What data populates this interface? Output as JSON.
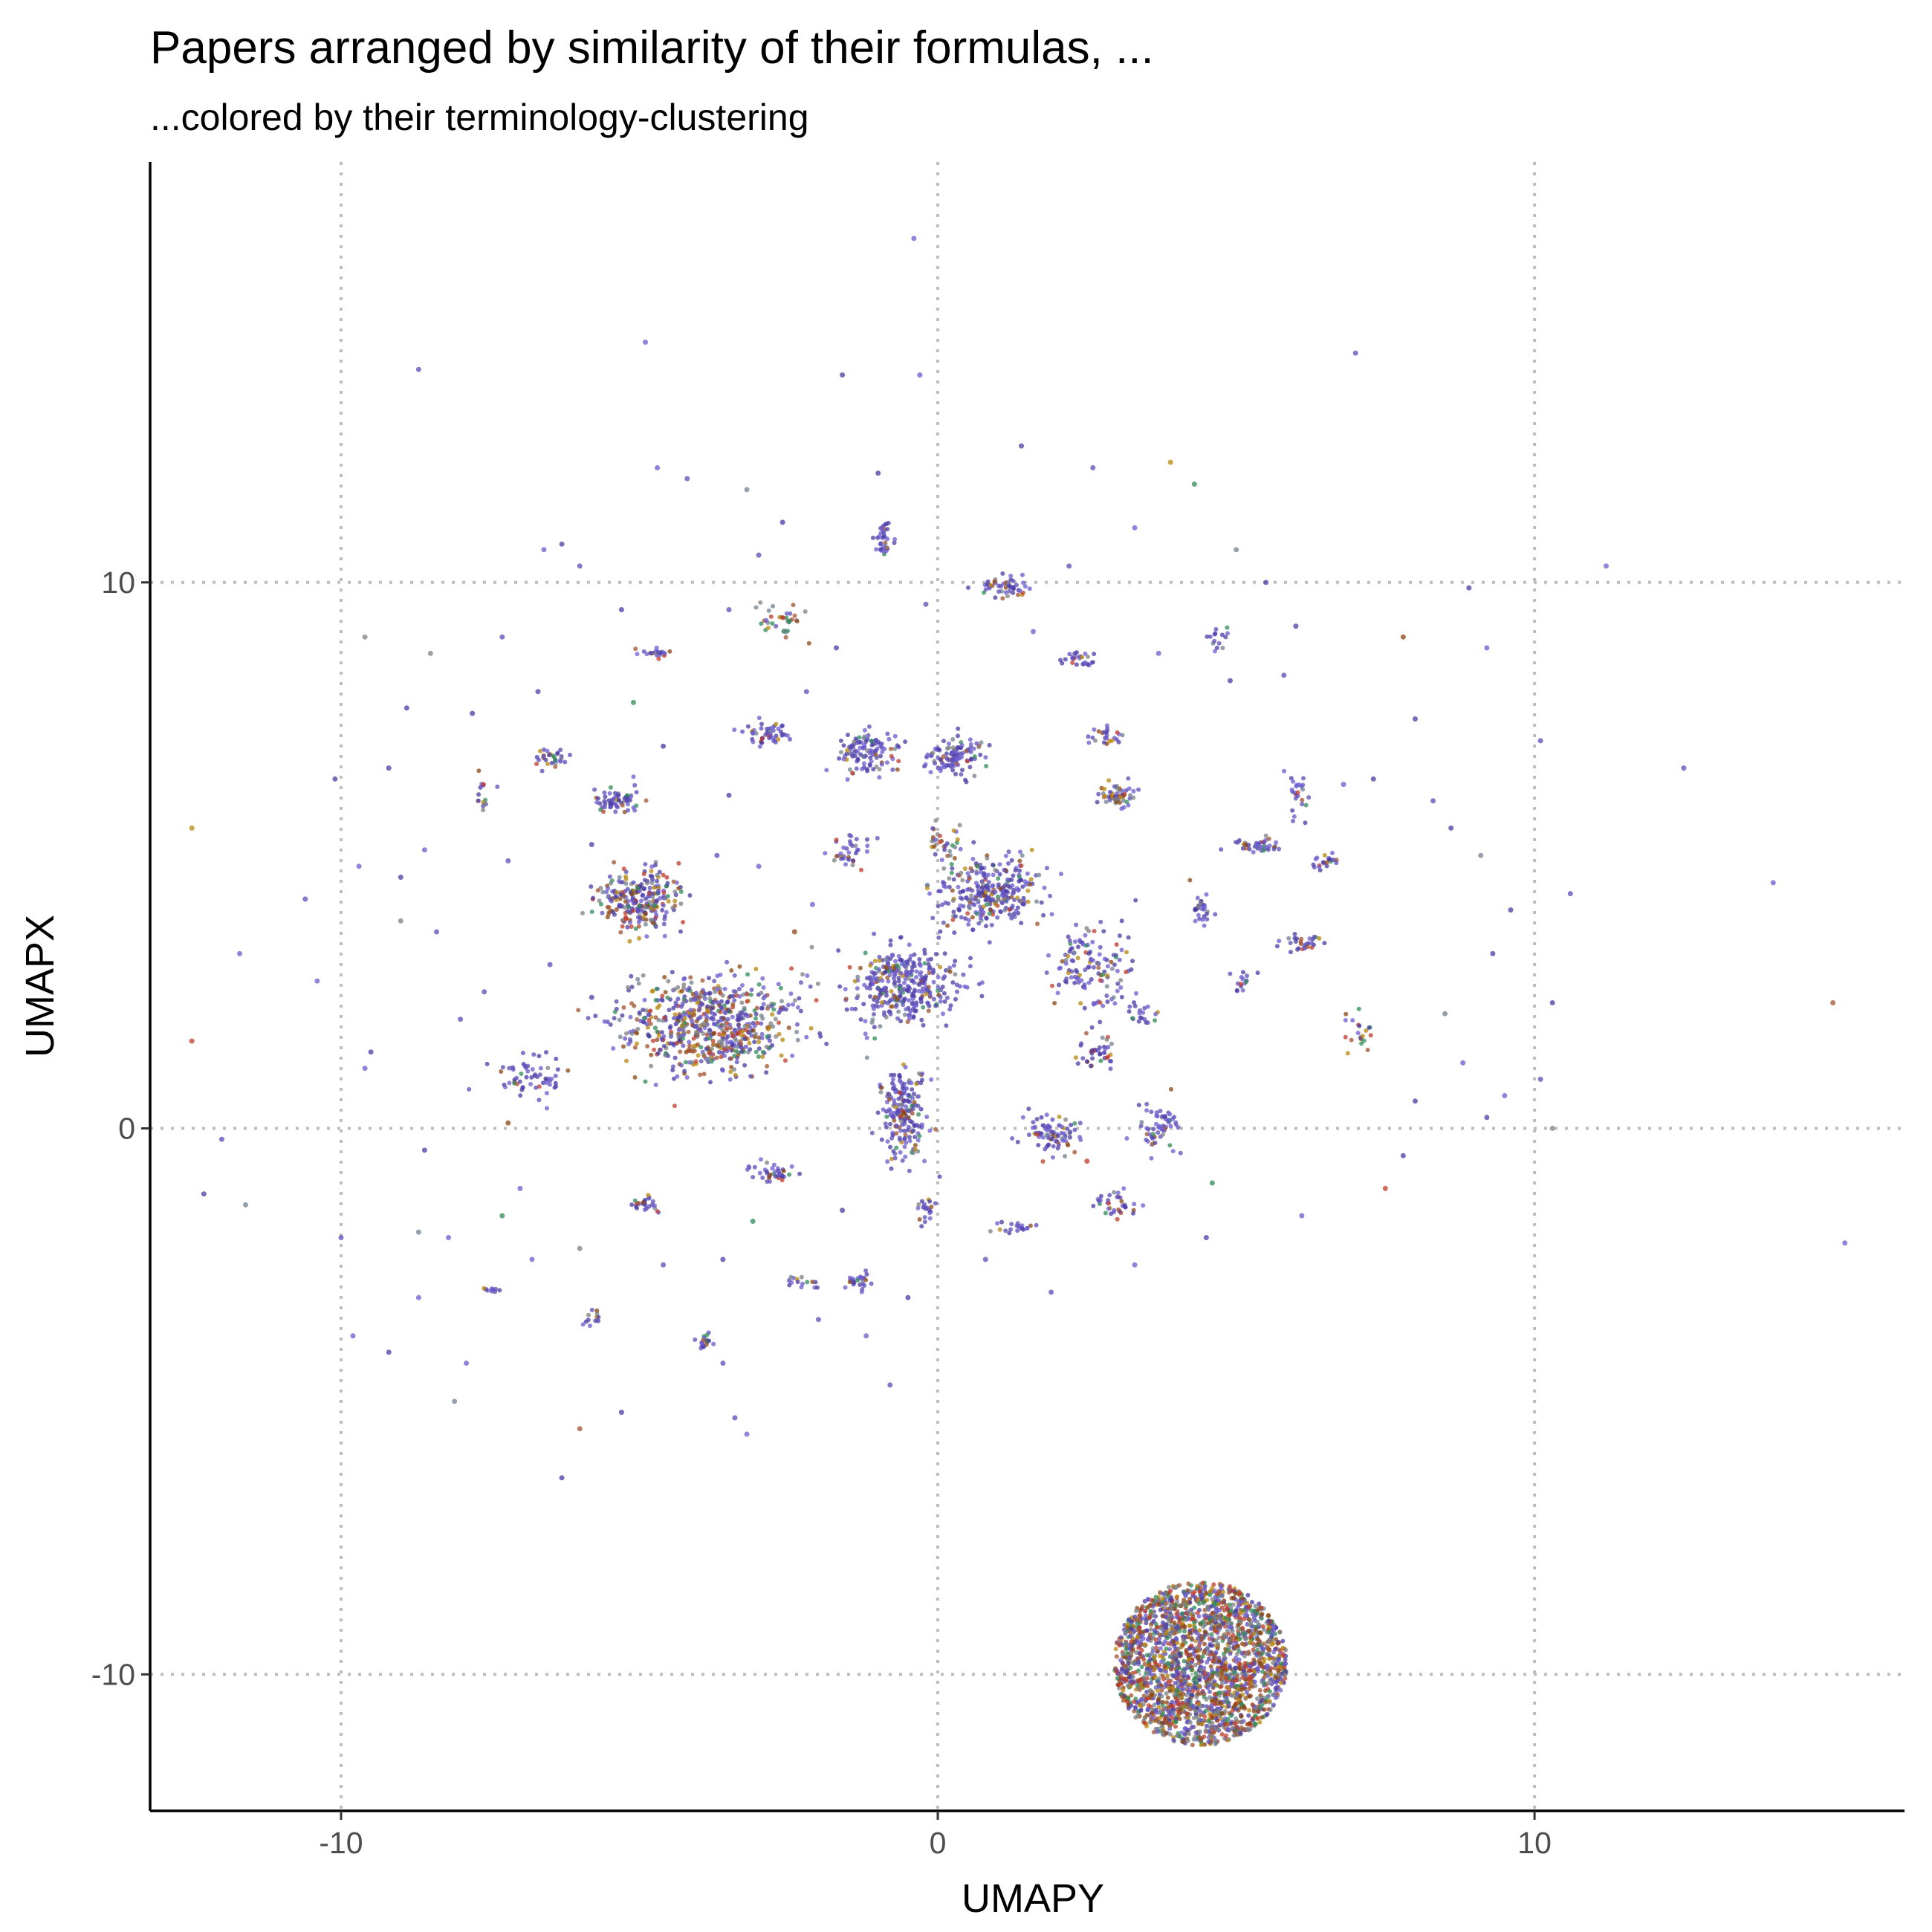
{
  "chart_data": {
    "type": "scatter",
    "title": "Papers arranged by similarity of their formulas, ...",
    "subtitle": "...colored by their terminology-clustering",
    "xlabel": "UMAPY",
    "ylabel": "UMAPX",
    "xlim": [
      -13.2,
      16.2
    ],
    "ylim": [
      -12.5,
      17.7
    ],
    "x_ticks": [
      {
        "value": -10,
        "label": "-10"
      },
      {
        "value": 0,
        "label": "0"
      },
      {
        "value": 10,
        "label": "10"
      }
    ],
    "y_ticks": [
      {
        "value": -10,
        "label": "-10"
      },
      {
        "value": 0,
        "label": "0"
      },
      {
        "value": 10,
        "label": "10"
      }
    ],
    "grid": true,
    "legend": "none",
    "palette": [
      "#5b4bb8",
      "#4a3aa6",
      "#6a5acd",
      "#b8860b",
      "#8b4513",
      "#7f7f7f",
      "#2e8b57",
      "#a0522d",
      "#c0392b",
      "#708090"
    ],
    "clusters": [
      {
        "x": 4.4,
        "y": -9.8,
        "rx": 1.45,
        "ry": 1.5,
        "n": 2200,
        "shape": "disk",
        "colors": "mixed"
      },
      {
        "x": -3.8,
        "y": 1.9,
        "rx": 1.4,
        "ry": 0.9,
        "n": 650,
        "colors": "warm"
      },
      {
        "x": -5.0,
        "y": 4.2,
        "rx": 0.65,
        "ry": 0.55,
        "n": 260,
        "colors": "warm"
      },
      {
        "x": -0.5,
        "y": 2.6,
        "rx": 0.9,
        "ry": 0.7,
        "n": 340,
        "colors": "purple"
      },
      {
        "x": 0.9,
        "y": 4.3,
        "rx": 0.9,
        "ry": 0.6,
        "n": 300,
        "colors": "purple"
      },
      {
        "x": -0.6,
        "y": 0.3,
        "rx": 0.4,
        "ry": 0.9,
        "n": 190,
        "colors": "purple"
      },
      {
        "x": 0.3,
        "y": 6.8,
        "rx": 0.45,
        "ry": 0.35,
        "n": 110,
        "colors": "purple"
      },
      {
        "x": -1.2,
        "y": 6.9,
        "rx": 0.5,
        "ry": 0.4,
        "n": 110,
        "colors": "purple"
      },
      {
        "x": 2.6,
        "y": 3.0,
        "rx": 0.7,
        "ry": 0.8,
        "n": 130,
        "colors": "purple"
      },
      {
        "x": 3.0,
        "y": 6.1,
        "rx": 0.3,
        "ry": 0.2,
        "n": 60,
        "colors": "warm"
      },
      {
        "x": 1.9,
        "y": -0.1,
        "rx": 0.5,
        "ry": 0.4,
        "n": 80,
        "colors": "purple"
      },
      {
        "x": 3.7,
        "y": 0.0,
        "rx": 0.4,
        "ry": 0.5,
        "n": 60,
        "colors": "purple"
      },
      {
        "x": -5.4,
        "y": 6.0,
        "rx": 0.4,
        "ry": 0.25,
        "n": 60,
        "colors": "purple"
      },
      {
        "x": -6.9,
        "y": 0.9,
        "rx": 0.6,
        "ry": 0.4,
        "n": 60,
        "colors": "purple"
      },
      {
        "x": -2.9,
        "y": 7.2,
        "rx": 0.4,
        "ry": 0.2,
        "n": 50,
        "colors": "purple"
      },
      {
        "x": 1.1,
        "y": 9.9,
        "rx": 0.45,
        "ry": 0.2,
        "n": 50,
        "colors": "purple"
      },
      {
        "x": -0.9,
        "y": 10.8,
        "rx": 0.15,
        "ry": 0.35,
        "n": 35,
        "colors": "purple"
      },
      {
        "x": 5.3,
        "y": 5.2,
        "rx": 0.4,
        "ry": 0.15,
        "n": 40,
        "colors": "purple"
      },
      {
        "x": 2.7,
        "y": 1.4,
        "rx": 0.4,
        "ry": 0.3,
        "n": 40,
        "colors": "purple"
      },
      {
        "x": -2.8,
        "y": -0.8,
        "rx": 0.35,
        "ry": 0.2,
        "n": 40,
        "colors": "purple"
      },
      {
        "x": 3.0,
        "y": -1.4,
        "rx": 0.35,
        "ry": 0.25,
        "n": 35,
        "colors": "purple"
      },
      {
        "x": -6.5,
        "y": 6.8,
        "rx": 0.3,
        "ry": 0.2,
        "n": 30,
        "colors": "purple"
      },
      {
        "x": -1.5,
        "y": 5.0,
        "rx": 0.3,
        "ry": 0.3,
        "n": 35,
        "colors": "purple"
      },
      {
        "x": 4.4,
        "y": 4.0,
        "rx": 0.2,
        "ry": 0.3,
        "n": 30,
        "colors": "purple"
      },
      {
        "x": 6.1,
        "y": 3.4,
        "rx": 0.3,
        "ry": 0.15,
        "n": 30,
        "colors": "purple"
      },
      {
        "x": -4.9,
        "y": -1.4,
        "rx": 0.3,
        "ry": 0.15,
        "n": 25,
        "colors": "purple"
      },
      {
        "x": -3.9,
        "y": -3.9,
        "rx": 0.15,
        "ry": 0.15,
        "n": 20,
        "colors": "purple"
      },
      {
        "x": 1.3,
        "y": -1.8,
        "rx": 0.35,
        "ry": 0.1,
        "n": 20,
        "colors": "purple"
      },
      {
        "x": 6.0,
        "y": 6.1,
        "rx": 0.25,
        "ry": 0.4,
        "n": 25,
        "colors": "purple"
      },
      {
        "x": 6.5,
        "y": 4.9,
        "rx": 0.2,
        "ry": 0.15,
        "n": 20,
        "colors": "purple"
      },
      {
        "x": 2.8,
        "y": 7.2,
        "rx": 0.3,
        "ry": 0.2,
        "n": 25,
        "colors": "purple"
      },
      {
        "x": 2.4,
        "y": 8.6,
        "rx": 0.3,
        "ry": 0.15,
        "n": 25,
        "colors": "purple"
      },
      {
        "x": -4.8,
        "y": 8.7,
        "rx": 0.3,
        "ry": 0.1,
        "n": 20,
        "colors": "purple"
      },
      {
        "x": -2.6,
        "y": 9.3,
        "rx": 0.4,
        "ry": 0.3,
        "n": 35,
        "colors": "mixed"
      },
      {
        "x": -1.3,
        "y": -2.8,
        "rx": 0.3,
        "ry": 0.15,
        "n": 25,
        "colors": "purple"
      },
      {
        "x": -0.2,
        "y": -1.5,
        "rx": 0.15,
        "ry": 0.3,
        "n": 20,
        "colors": "purple"
      },
      {
        "x": 5.1,
        "y": 2.7,
        "rx": 0.2,
        "ry": 0.2,
        "n": 15,
        "colors": "purple"
      },
      {
        "x": 7.0,
        "y": 1.8,
        "rx": 0.3,
        "ry": 0.4,
        "n": 20,
        "colors": "mixed"
      },
      {
        "x": -7.6,
        "y": 6.1,
        "rx": 0.15,
        "ry": 0.3,
        "n": 15,
        "colors": "purple"
      },
      {
        "x": -5.8,
        "y": -3.5,
        "rx": 0.15,
        "ry": 0.3,
        "n": 12,
        "colors": "purple"
      },
      {
        "x": -7.5,
        "y": -3.0,
        "rx": 0.1,
        "ry": 0.1,
        "n": 10,
        "colors": "purple"
      },
      {
        "x": -2.3,
        "y": -2.8,
        "rx": 0.25,
        "ry": 0.15,
        "n": 15,
        "colors": "purple"
      },
      {
        "x": 4.7,
        "y": 9.0,
        "rx": 0.2,
        "ry": 0.3,
        "n": 15,
        "colors": "purple"
      },
      {
        "x": 3.4,
        "y": 2.1,
        "rx": 0.25,
        "ry": 0.25,
        "n": 20,
        "colors": "purple"
      },
      {
        "x": 0.1,
        "y": 5.3,
        "rx": 0.3,
        "ry": 0.3,
        "n": 30,
        "colors": "mixed"
      }
    ],
    "outliers": [
      [
        -0.4,
        16.3
      ],
      [
        -8.7,
        13.9
      ],
      [
        -4.9,
        14.4
      ],
      [
        -1.6,
        13.8
      ],
      [
        -0.3,
        13.8
      ],
      [
        7.0,
        14.2
      ],
      [
        1.4,
        12.5
      ],
      [
        2.6,
        12.1
      ],
      [
        3.9,
        12.2
      ],
      [
        -4.7,
        12.1
      ],
      [
        -4.2,
        11.9
      ],
      [
        -3.2,
        11.7
      ],
      [
        -2.6,
        11.1
      ],
      [
        -1.0,
        12.0
      ],
      [
        -3.0,
        10.5
      ],
      [
        -6.6,
        10.6
      ],
      [
        -6.3,
        10.7
      ],
      [
        -6.0,
        10.3
      ],
      [
        4.3,
        11.8
      ],
      [
        -12.5,
        5.5
      ],
      [
        -11.7,
        3.2
      ],
      [
        -10.4,
        2.7
      ],
      [
        -12.5,
        1.6
      ],
      [
        -12.3,
        -1.2
      ],
      [
        -11.6,
        -1.4
      ],
      [
        -10.0,
        -2.0
      ],
      [
        -9.8,
        -3.8
      ],
      [
        -8.2,
        -2.0
      ],
      [
        -9.2,
        -4.1
      ],
      [
        -8.1,
        -5.0
      ],
      [
        -6.8,
        -2.4
      ],
      [
        -7.9,
        -4.3
      ],
      [
        -6.0,
        -5.5
      ],
      [
        -6.3,
        -6.4
      ],
      [
        -5.3,
        -5.2
      ],
      [
        -3.2,
        -5.6
      ],
      [
        -3.4,
        -5.3
      ],
      [
        -3.6,
        -4.3
      ],
      [
        -8.7,
        -1.9
      ],
      [
        -9.7,
        4.8
      ],
      [
        -9.0,
        3.8
      ],
      [
        -9.5,
        1.4
      ],
      [
        -12.0,
        -0.2
      ],
      [
        -10.1,
        6.4
      ],
      [
        -9.2,
        6.6
      ],
      [
        -8.9,
        7.7
      ],
      [
        -9.6,
        9.0
      ],
      [
        -10.6,
        4.2
      ],
      [
        -8.6,
        5.1
      ],
      [
        -7.2,
        4.9
      ],
      [
        -8.4,
        3.6
      ],
      [
        -9.0,
        4.6
      ],
      [
        8.9,
        9.9
      ],
      [
        9.1,
        5.0
      ],
      [
        9.6,
        4.0
      ],
      [
        10.6,
        4.3
      ],
      [
        10.1,
        7.1
      ],
      [
        14.0,
        4.5
      ],
      [
        15.0,
        2.3
      ],
      [
        15.2,
        -2.1
      ],
      [
        9.3,
        3.2
      ],
      [
        10.3,
        2.3
      ],
      [
        10.3,
        0.0
      ],
      [
        10.1,
        0.9
      ],
      [
        9.5,
        0.6
      ],
      [
        8.0,
        0.5
      ],
      [
        7.8,
        -0.5
      ],
      [
        7.5,
        -1.1
      ],
      [
        8.5,
        2.1
      ],
      [
        8.8,
        1.2
      ],
      [
        9.2,
        0.2
      ],
      [
        4.5,
        -2.0
      ],
      [
        8.0,
        7.5
      ],
      [
        8.3,
        6.0
      ],
      [
        8.6,
        5.5
      ],
      [
        7.3,
        6.4
      ],
      [
        6.8,
        6.3
      ],
      [
        7.8,
        9.0
      ],
      [
        -8.7,
        -3.1
      ],
      [
        -7.0,
        -1.1
      ],
      [
        -7.3,
        -1.6
      ],
      [
        -6.0,
        -2.2
      ],
      [
        -4.6,
        -2.5
      ],
      [
        -3.1,
        -1.7
      ],
      [
        -1.2,
        -3.8
      ],
      [
        -0.8,
        -4.7
      ],
      [
        -2.0,
        -3.5
      ],
      [
        -4.6,
        7.0
      ],
      [
        -5.8,
        5.2
      ],
      [
        -5.1,
        7.8
      ],
      [
        -3.5,
        6.1
      ],
      [
        -2.4,
        3.6
      ],
      [
        -2.1,
        4.1
      ],
      [
        -3.0,
        4.8
      ],
      [
        -3.7,
        5.0
      ],
      [
        2.2,
        10.3
      ],
      [
        3.3,
        11.0
      ],
      [
        5.0,
        10.6
      ],
      [
        5.5,
        10.0
      ],
      [
        6.0,
        9.2
      ],
      [
        5.8,
        8.3
      ],
      [
        4.9,
        8.2
      ],
      [
        3.7,
        8.7
      ],
      [
        1.6,
        9.1
      ],
      [
        -0.2,
        9.6
      ],
      [
        -2.2,
        8.0
      ],
      [
        -1.7,
        8.8
      ],
      [
        -3.5,
        9.5
      ],
      [
        -5.3,
        9.5
      ],
      [
        -6.7,
        8.0
      ],
      [
        -7.3,
        9.0
      ],
      [
        -7.8,
        7.6
      ],
      [
        -8.5,
        8.7
      ],
      [
        11.2,
        10.3
      ],
      [
        12.5,
        6.6
      ],
      [
        9.2,
        8.8
      ],
      [
        1.9,
        -3.0
      ],
      [
        3.3,
        -2.5
      ],
      [
        4.6,
        -1.0
      ],
      [
        6.1,
        -1.6
      ],
      [
        0.8,
        -2.4
      ],
      [
        -0.5,
        -3.1
      ],
      [
        2.5,
        -0.6
      ],
      [
        -1.6,
        -1.5
      ],
      [
        -3.6,
        -2.4
      ],
      [
        -5.8,
        2.4
      ],
      [
        -6.5,
        3.0
      ],
      [
        -7.6,
        2.5
      ],
      [
        -8.0,
        2.0
      ],
      [
        -9.6,
        1.1
      ],
      [
        -8.6,
        -0.4
      ],
      [
        -7.2,
        0.1
      ]
    ]
  }
}
